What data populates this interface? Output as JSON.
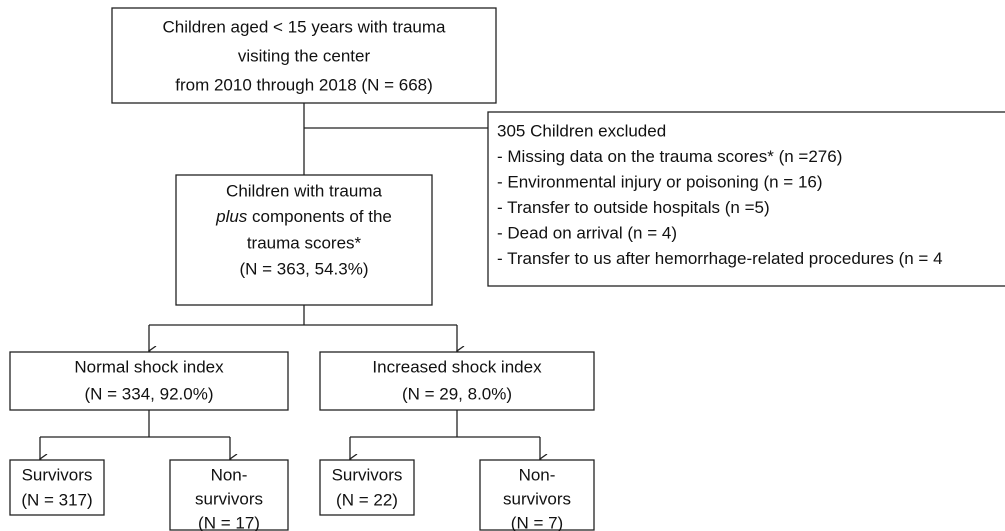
{
  "nodes": [
    {
      "lines": [
        "Children aged < 15 years with trauma",
        "visiting the center",
        "from 2010 through 2018 (N = 668)"
      ]
    },
    {
      "lines": [
        "Children with trauma",
        {
          "italic": "plus",
          "text": " components of the"
        },
        "trauma scores*",
        "(N = 363, 54.3%)"
      ]
    },
    {
      "lines": [
        "305 Children excluded",
        "- Missing data on the trauma scores* (n =276)",
        "- Environmental injury or poisoning (n = 16)",
        "- Transfer to outside hospitals (n =5)",
        "- Dead on arrival (n = 4)",
        "- Transfer to us after hemorrhage-related procedures (n = 4"
      ]
    },
    {
      "lines": [
        "Normal shock index",
        "(N = 334, 92.0%)"
      ]
    },
    {
      "lines": [
        "Increased shock index",
        "(N = 29, 8.0%)"
      ]
    },
    {
      "lines": [
        "Survivors",
        "(N = 317)"
      ]
    },
    {
      "lines": [
        "Non-",
        "survivors",
        "(N = 17)"
      ]
    },
    {
      "lines": [
        "Survivors",
        "(N = 22)"
      ]
    },
    {
      "lines": [
        "Non-",
        "survivors",
        "(N = 7)"
      ]
    }
  ]
}
